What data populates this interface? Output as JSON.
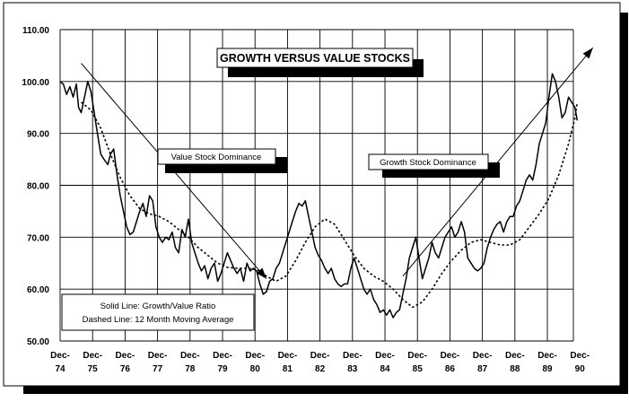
{
  "chart_data": {
    "type": "line",
    "title": "GROWTH VERSUS VALUE STOCKS",
    "xlabel": "",
    "ylabel": "",
    "ylim": [
      50,
      110
    ],
    "xlim": [
      1974.95,
      1990.75
    ],
    "grid": true,
    "y_ticks": [
      "50.00",
      "60.00",
      "70.00",
      "80.00",
      "90.00",
      "100.00",
      "110.00"
    ],
    "x_ticks": [
      {
        "l1": "Dec-",
        "l2": "74",
        "x": 1974.95
      },
      {
        "l1": "Dec-",
        "l2": "75",
        "x": 1975.95
      },
      {
        "l1": "Dec-",
        "l2": "76",
        "x": 1976.95
      },
      {
        "l1": "Dec-",
        "l2": "77",
        "x": 1977.95
      },
      {
        "l1": "Dec-",
        "l2": "78",
        "x": 1978.95
      },
      {
        "l1": "Dec-",
        "l2": "79",
        "x": 1979.95
      },
      {
        "l1": "Dec-",
        "l2": "80",
        "x": 1980.95
      },
      {
        "l1": "Dec-",
        "l2": "81",
        "x": 1981.95
      },
      {
        "l1": "Dec-",
        "l2": "82",
        "x": 1982.95
      },
      {
        "l1": "Dec-",
        "l2": "83",
        "x": 1983.95
      },
      {
        "l1": "Dec-",
        "l2": "84",
        "x": 1984.95
      },
      {
        "l1": "Dec-",
        "l2": "85",
        "x": 1985.95
      },
      {
        "l1": "Dec-",
        "l2": "86",
        "x": 1986.95
      },
      {
        "l1": "Dec-",
        "l2": "87",
        "x": 1987.95
      },
      {
        "l1": "Dec-",
        "l2": "88",
        "x": 1988.95
      },
      {
        "l1": "Dec-",
        "l2": "89",
        "x": 1989.95
      },
      {
        "l1": "Dec-",
        "l2": "90",
        "x": 1990.95
      }
    ],
    "series": [
      {
        "style": "solid",
        "points": [
          [
            1974.95,
            100.0
          ],
          [
            1975.05,
            99.5
          ],
          [
            1975.15,
            97.5
          ],
          [
            1975.25,
            99.0
          ],
          [
            1975.35,
            97.0
          ],
          [
            1975.45,
            99.5
          ],
          [
            1975.52,
            95.0
          ],
          [
            1975.6,
            94.0
          ],
          [
            1975.7,
            97.0
          ],
          [
            1975.8,
            100.0
          ],
          [
            1975.9,
            98.0
          ],
          [
            1976.0,
            94.0
          ],
          [
            1976.1,
            90.0
          ],
          [
            1976.2,
            86.0
          ],
          [
            1976.3,
            85.0
          ],
          [
            1976.42,
            84.0
          ],
          [
            1976.5,
            86.0
          ],
          [
            1976.6,
            87.0
          ],
          [
            1976.7,
            82.0
          ],
          [
            1976.8,
            78.0
          ],
          [
            1976.9,
            75.0
          ],
          [
            1977.0,
            72.0
          ],
          [
            1977.1,
            70.5
          ],
          [
            1977.2,
            71.0
          ],
          [
            1977.3,
            73.0
          ],
          [
            1977.4,
            75.0
          ],
          [
            1977.5,
            76.5
          ],
          [
            1977.6,
            74.0
          ],
          [
            1977.7,
            78.0
          ],
          [
            1977.8,
            77.0
          ],
          [
            1977.9,
            72.0
          ],
          [
            1978.0,
            70.0
          ],
          [
            1978.1,
            69.0
          ],
          [
            1978.2,
            70.0
          ],
          [
            1978.3,
            69.5
          ],
          [
            1978.4,
            71.0
          ],
          [
            1978.5,
            68.0
          ],
          [
            1978.6,
            67.0
          ],
          [
            1978.7,
            71.5
          ],
          [
            1978.8,
            70.0
          ],
          [
            1978.9,
            73.5
          ],
          [
            1979.0,
            69.0
          ],
          [
            1979.1,
            67.0
          ],
          [
            1979.2,
            65.0
          ],
          [
            1979.3,
            63.5
          ],
          [
            1979.4,
            64.5
          ],
          [
            1979.5,
            62.0
          ],
          [
            1979.6,
            64.0
          ],
          [
            1979.7,
            65.0
          ],
          [
            1979.8,
            61.5
          ],
          [
            1979.9,
            63.0
          ],
          [
            1980.0,
            65.0
          ],
          [
            1980.1,
            67.0
          ],
          [
            1980.2,
            65.5
          ],
          [
            1980.3,
            64.0
          ],
          [
            1980.4,
            63.0
          ],
          [
            1980.5,
            64.0
          ],
          [
            1980.6,
            61.5
          ],
          [
            1980.7,
            65.0
          ],
          [
            1980.8,
            63.5
          ],
          [
            1980.9,
            64.0
          ],
          [
            1981.0,
            63.5
          ],
          [
            1981.1,
            61.0
          ],
          [
            1981.2,
            59.0
          ],
          [
            1981.3,
            59.5
          ],
          [
            1981.4,
            61.5
          ],
          [
            1981.5,
            62.0
          ],
          [
            1981.6,
            64.0
          ],
          [
            1981.7,
            65.0
          ],
          [
            1981.8,
            67.0
          ],
          [
            1981.9,
            69.0
          ],
          [
            1982.0,
            71.0
          ],
          [
            1982.1,
            73.0
          ],
          [
            1982.2,
            75.0
          ],
          [
            1982.3,
            76.5
          ],
          [
            1982.4,
            76.0
          ],
          [
            1982.5,
            77.0
          ],
          [
            1982.6,
            74.0
          ],
          [
            1982.7,
            71.0
          ],
          [
            1982.8,
            68.0
          ],
          [
            1982.9,
            66.5
          ],
          [
            1983.0,
            65.5
          ],
          [
            1983.1,
            64.0
          ],
          [
            1983.2,
            63.0
          ],
          [
            1983.3,
            64.0
          ],
          [
            1983.4,
            62.0
          ],
          [
            1983.5,
            61.0
          ],
          [
            1983.6,
            60.5
          ],
          [
            1983.7,
            61.0
          ],
          [
            1983.8,
            61.0
          ],
          [
            1983.9,
            64.0
          ],
          [
            1984.0,
            66.0
          ],
          [
            1984.1,
            64.0
          ],
          [
            1984.2,
            62.0
          ],
          [
            1984.3,
            60.0
          ],
          [
            1984.4,
            59.0
          ],
          [
            1984.5,
            60.0
          ],
          [
            1984.6,
            58.0
          ],
          [
            1984.7,
            57.0
          ],
          [
            1984.8,
            55.5
          ],
          [
            1984.9,
            56.0
          ],
          [
            1985.0,
            55.0
          ],
          [
            1985.1,
            56.0
          ],
          [
            1985.2,
            54.5
          ],
          [
            1985.3,
            55.5
          ],
          [
            1985.4,
            56.0
          ],
          [
            1985.5,
            59.0
          ],
          [
            1985.6,
            62.0
          ],
          [
            1985.7,
            66.0
          ],
          [
            1985.8,
            68.0
          ],
          [
            1985.9,
            70.0
          ],
          [
            1986.0,
            66.0
          ],
          [
            1986.1,
            62.0
          ],
          [
            1986.2,
            64.0
          ],
          [
            1986.3,
            66.0
          ],
          [
            1986.4,
            69.0
          ],
          [
            1986.5,
            67.0
          ],
          [
            1986.6,
            66.0
          ],
          [
            1986.7,
            68.0
          ],
          [
            1986.8,
            70.0
          ],
          [
            1986.9,
            71.0
          ],
          [
            1987.0,
            72.0
          ],
          [
            1987.1,
            70.0
          ],
          [
            1987.2,
            71.0
          ],
          [
            1987.3,
            73.0
          ],
          [
            1987.4,
            71.0
          ],
          [
            1987.5,
            66.0
          ],
          [
            1987.6,
            65.0
          ],
          [
            1987.7,
            64.0
          ],
          [
            1987.8,
            63.5
          ],
          [
            1987.9,
            64.0
          ],
          [
            1988.0,
            65.0
          ],
          [
            1988.1,
            68.0
          ],
          [
            1988.2,
            70.0
          ],
          [
            1988.3,
            71.5
          ],
          [
            1988.4,
            72.5
          ],
          [
            1988.5,
            73.0
          ],
          [
            1988.6,
            71.0
          ],
          [
            1988.7,
            73.0
          ],
          [
            1988.8,
            74.0
          ],
          [
            1988.9,
            74.0
          ],
          [
            1989.0,
            76.0
          ],
          [
            1989.1,
            77.0
          ],
          [
            1989.2,
            79.0
          ],
          [
            1989.3,
            81.0
          ],
          [
            1989.4,
            82.0
          ],
          [
            1989.5,
            81.0
          ],
          [
            1989.6,
            84.0
          ],
          [
            1989.7,
            88.0
          ],
          [
            1989.8,
            90.0
          ],
          [
            1989.9,
            92.0
          ],
          [
            1990.0,
            97.0
          ],
          [
            1990.1,
            101.5
          ],
          [
            1990.2,
            100.0
          ],
          [
            1990.3,
            97.0
          ],
          [
            1990.4,
            93.0
          ],
          [
            1990.5,
            94.0
          ],
          [
            1990.6,
            97.0
          ],
          [
            1990.7,
            96.0
          ],
          [
            1990.8,
            95.0
          ],
          [
            1990.87,
            92.5
          ]
        ]
      },
      {
        "style": "dashed",
        "points": [
          [
            1975.6,
            96.0
          ],
          [
            1975.9,
            94.5
          ],
          [
            1976.2,
            91.0
          ],
          [
            1976.5,
            86.0
          ],
          [
            1976.8,
            81.5
          ],
          [
            1977.1,
            78.0
          ],
          [
            1977.4,
            75.5
          ],
          [
            1977.7,
            74.5
          ],
          [
            1978.0,
            74.0
          ],
          [
            1978.3,
            73.0
          ],
          [
            1978.6,
            71.5
          ],
          [
            1978.9,
            70.0
          ],
          [
            1979.2,
            68.0
          ],
          [
            1979.5,
            66.5
          ],
          [
            1979.8,
            65.0
          ],
          [
            1980.1,
            64.2
          ],
          [
            1980.4,
            64.0
          ],
          [
            1980.7,
            64.0
          ],
          [
            1981.0,
            63.8
          ],
          [
            1981.3,
            62.5
          ],
          [
            1981.6,
            61.5
          ],
          [
            1981.9,
            62.5
          ],
          [
            1982.2,
            65.5
          ],
          [
            1982.5,
            69.0
          ],
          [
            1982.8,
            72.0
          ],
          [
            1983.1,
            73.5
          ],
          [
            1983.4,
            72.5
          ],
          [
            1983.7,
            69.5
          ],
          [
            1984.0,
            66.5
          ],
          [
            1984.3,
            64.0
          ],
          [
            1984.6,
            62.5
          ],
          [
            1984.9,
            61.5
          ],
          [
            1985.2,
            60.0
          ],
          [
            1985.5,
            58.0
          ],
          [
            1985.8,
            56.5
          ],
          [
            1986.1,
            57.5
          ],
          [
            1986.4,
            60.0
          ],
          [
            1986.7,
            63.0
          ],
          [
            1987.0,
            65.5
          ],
          [
            1987.3,
            67.5
          ],
          [
            1987.6,
            69.0
          ],
          [
            1987.9,
            69.5
          ],
          [
            1988.2,
            69.0
          ],
          [
            1988.5,
            68.5
          ],
          [
            1988.8,
            68.5
          ],
          [
            1989.1,
            69.5
          ],
          [
            1989.4,
            72.0
          ],
          [
            1989.7,
            74.5
          ],
          [
            1990.0,
            77.5
          ],
          [
            1990.3,
            82.0
          ],
          [
            1990.6,
            88.0
          ],
          [
            1990.8,
            93.0
          ],
          [
            1990.87,
            96.0
          ]
        ]
      }
    ],
    "annotations": [
      {
        "id": "value",
        "text": "Value Stock Dominance"
      },
      {
        "id": "growth",
        "text": "Growth Stock Dominance"
      }
    ],
    "legend_lines": [
      "Solid Line: Growth/Value Ratio",
      "Dashed Line: 12 Month Moving Average"
    ],
    "arrows": [
      {
        "from": [
          1975.6,
          103.5
        ],
        "to": [
          1981.3,
          62.0
        ]
      },
      {
        "from": [
          1985.5,
          62.5
        ],
        "to": [
          1991.35,
          106.5
        ]
      }
    ]
  }
}
